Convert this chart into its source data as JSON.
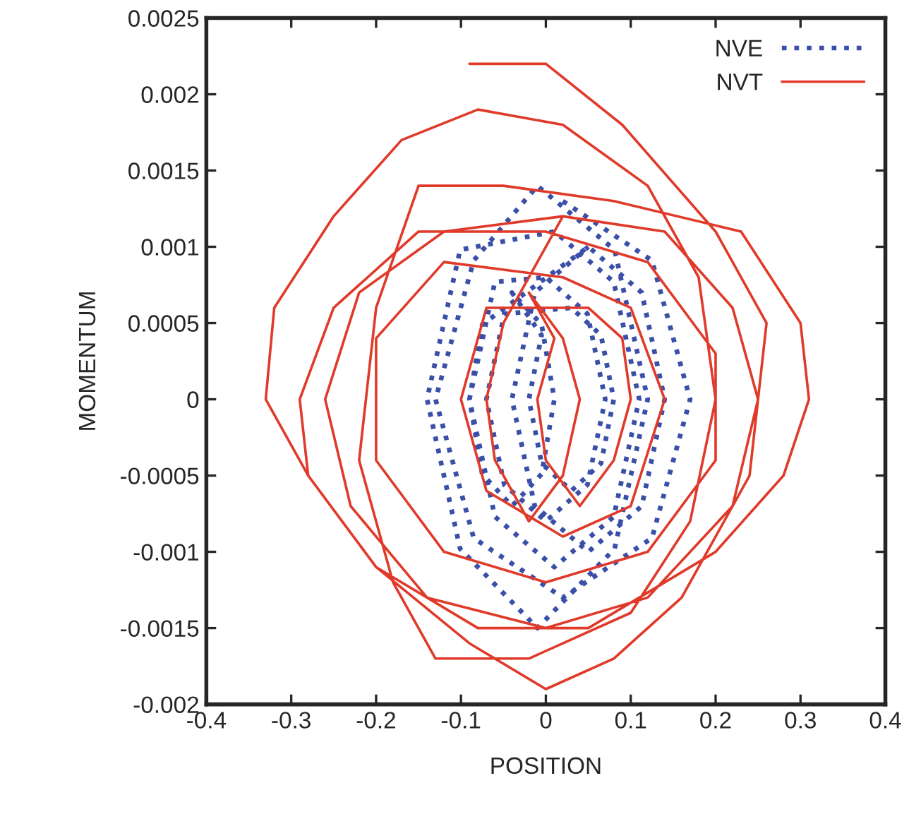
{
  "chart_data": {
    "type": "line",
    "xlabel": "POSITION",
    "ylabel": "MOMENTUM",
    "xlim": [
      -0.4,
      0.4
    ],
    "xticks": [
      -0.4,
      -0.3,
      -0.2,
      -0.1,
      0,
      0.1,
      0.2,
      0.3,
      0.4
    ],
    "ylim": [
      -0.002,
      0.0025
    ],
    "yticks": [
      -0.002,
      -0.0015,
      -0.001,
      -0.0005,
      0,
      0.0005,
      0.001,
      0.0015,
      0.002,
      0.0025
    ],
    "grid": false,
    "legend": "top right",
    "marker": "none",
    "series": [
      {
        "name": "NVE",
        "color": "#3a4fa8",
        "line_style": "dotted",
        "x": [
          0.02,
          0.125,
          0.17,
          0.125,
          0.02,
          -0.085,
          -0.13,
          -0.085,
          -0.01,
          0.081,
          0.12,
          0.081,
          -0.01,
          -0.101,
          -0.14,
          -0.101,
          0.01,
          0.08,
          0.11,
          0.08,
          0.01,
          -0.06,
          -0.09,
          -0.06,
          0,
          0.049,
          0.07,
          0.049,
          0,
          -0.049,
          -0.07,
          -0.049,
          0.03,
          0.065,
          0.08,
          0.065,
          0.03,
          -0.005,
          -0.02,
          -0.005,
          -0.04,
          -0.005,
          0.01,
          -0.005,
          -0.04,
          -0.075,
          -0.09,
          -0.075,
          0.05,
          0.113,
          0.14,
          0.113,
          0.05,
          -0.013,
          -0.04,
          -0.013,
          0.05
        ],
        "values": [
          0.0013,
          0.00091,
          0,
          -0.00091,
          -0.0013,
          -0.00091,
          0,
          0.00091,
          0.0014,
          0.00098,
          0,
          -0.00098,
          -0.0015,
          -0.00098,
          0,
          0.00098,
          0.0011,
          0.00077,
          0,
          -0.00077,
          -0.0011,
          -0.00077,
          0,
          0.00077,
          0.0008,
          0.00056,
          0,
          -0.00056,
          -0.0008,
          -0.00056,
          0,
          0.00056,
          0.0006,
          0.00042,
          0,
          -0.00042,
          -0.0006,
          -0.00042,
          0,
          0.00042,
          0.0007,
          0.00049,
          0,
          -0.00049,
          -0.0007,
          -0.00049,
          0,
          0.00049,
          0.001,
          0.0007,
          0,
          -0.0007,
          -0.001,
          -0.0007,
          0,
          0.0007,
          0.001
        ]
      },
      {
        "name": "NVT",
        "color": "#e03a2a",
        "line_style": "solid",
        "x": [
          -0.09,
          0.0,
          0.09,
          0.2,
          0.26,
          0.24,
          0.16,
          0.08,
          0.0,
          -0.09,
          -0.2,
          -0.28,
          -0.33,
          -0.32,
          -0.25,
          -0.17,
          -0.08,
          0.02,
          0.12,
          0.18,
          0.2,
          0.17,
          0.1,
          -0.02,
          -0.13,
          -0.18,
          -0.22,
          -0.2,
          -0.15,
          -0.05,
          0.08,
          0.23,
          0.3,
          0.31,
          0.28,
          0.2,
          0.05,
          -0.08,
          -0.2,
          -0.28,
          -0.29,
          -0.25,
          -0.15,
          0.0,
          0.12,
          0.2,
          0.2,
          0.12,
          0.0,
          -0.12,
          -0.2,
          -0.2,
          -0.12,
          0.02,
          0.1,
          0.14,
          0.1,
          0.02,
          -0.07,
          -0.1,
          -0.07,
          0.05,
          0.09,
          0.1,
          0.08,
          0.04,
          0.0,
          -0.01,
          0.01,
          -0.02,
          0.02,
          0.04,
          0.02,
          -0.02,
          -0.06,
          -0.07,
          -0.05,
          0.02,
          0.14,
          0.22,
          0.25,
          0.22,
          0.12,
          0.0,
          -0.14,
          -0.23,
          -0.26,
          -0.22,
          -0.12,
          0.02
        ],
        "values": [
          0.0022,
          0.0022,
          0.0018,
          0.0011,
          0.0005,
          -0.0005,
          -0.0013,
          -0.0017,
          -0.0019,
          -0.0016,
          -0.0011,
          -0.0005,
          0.0,
          0.0006,
          0.0012,
          0.0017,
          0.0019,
          0.0018,
          0.0014,
          0.0008,
          0.0,
          -0.0008,
          -0.0014,
          -0.0017,
          -0.0017,
          -0.0012,
          -0.0004,
          0.0006,
          0.0014,
          0.0014,
          0.0013,
          0.0011,
          0.0005,
          0.0,
          -0.0005,
          -0.001,
          -0.0015,
          -0.0015,
          -0.0011,
          -0.0005,
          0.0,
          0.0006,
          0.0011,
          0.0011,
          0.0009,
          0.0003,
          -0.0004,
          -0.001,
          -0.0012,
          -0.001,
          -0.0004,
          0.0004,
          0.0009,
          0.0008,
          0.0006,
          0.0,
          -0.0007,
          -0.0009,
          -0.0006,
          0.0,
          0.0006,
          0.0006,
          0.0004,
          0.0,
          -0.0004,
          -0.0007,
          -0.0004,
          0.0,
          0.0004,
          0.0007,
          0.0004,
          0.0,
          -0.0005,
          -0.0008,
          -0.0004,
          0.0,
          0.0005,
          0.0012,
          0.0011,
          0.0006,
          0.0,
          -0.0007,
          -0.0013,
          -0.0015,
          -0.0013,
          -0.0007,
          0.0,
          0.0007,
          0.0011,
          0.0012
        ]
      }
    ]
  }
}
